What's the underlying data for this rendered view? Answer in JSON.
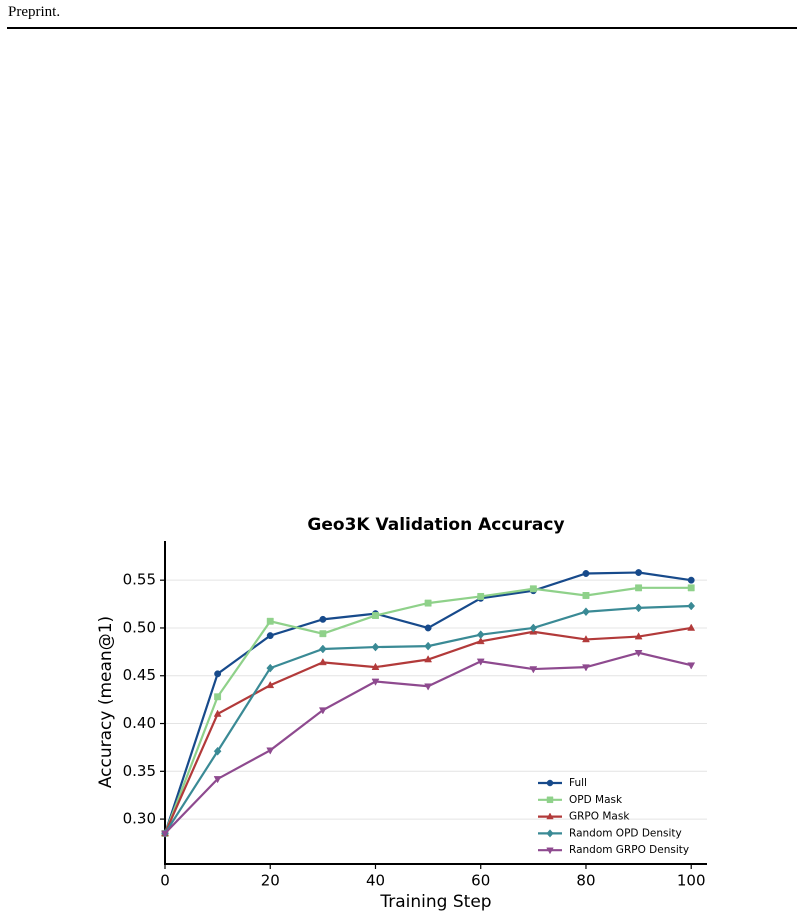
{
  "header": {
    "text": "Preprint."
  },
  "chart_data": {
    "type": "line",
    "title": "Geo3K Validation Accuracy",
    "x_label": "Training Step",
    "y_label": "Accuracy (mean@1)",
    "x": [
      0,
      10,
      20,
      30,
      40,
      50,
      60,
      70,
      80,
      90,
      100
    ],
    "series": [
      {
        "name": "Full",
        "color": "#174a8b",
        "marker": "circle",
        "values": [
          0.285,
          0.452,
          0.492,
          0.509,
          0.515,
          0.5,
          0.531,
          0.539,
          0.557,
          0.558,
          0.55
        ]
      },
      {
        "name": "OPD Mask",
        "color": "#8fd18a",
        "marker": "square",
        "values": [
          0.285,
          0.428,
          0.507,
          0.494,
          0.513,
          0.526,
          0.533,
          0.541,
          0.534,
          0.542,
          0.542
        ]
      },
      {
        "name": "GRPO Mask",
        "color": "#b23a3a",
        "marker": "triangle-up",
        "values": [
          0.285,
          0.41,
          0.44,
          0.464,
          0.459,
          0.467,
          0.486,
          0.496,
          0.488,
          0.491,
          0.5
        ]
      },
      {
        "name": "Random OPD Density",
        "color": "#3a8a95",
        "marker": "diamond",
        "values": [
          0.285,
          0.371,
          0.458,
          0.478,
          0.48,
          0.481,
          0.493,
          0.5,
          0.517,
          0.521,
          0.523
        ]
      },
      {
        "name": "Random GRPO Density",
        "color": "#8e4a8f",
        "marker": "triangle-down",
        "values": [
          0.285,
          0.342,
          0.372,
          0.414,
          0.444,
          0.439,
          0.465,
          0.457,
          0.459,
          0.474,
          0.461
        ]
      }
    ],
    "xlim": [
      0,
      103
    ],
    "xticks": [
      0,
      20,
      40,
      60,
      80,
      100
    ],
    "ylim": [
      0.253,
      0.591
    ],
    "yticks": [
      {
        "value": 0.3,
        "label": "0.30"
      },
      0.35,
      {
        "value": 0.4,
        "label": "0.40"
      },
      0.45,
      {
        "value": 0.5,
        "label": "0.50"
      },
      0.55
    ],
    "grid": true,
    "legend": "lower right"
  }
}
